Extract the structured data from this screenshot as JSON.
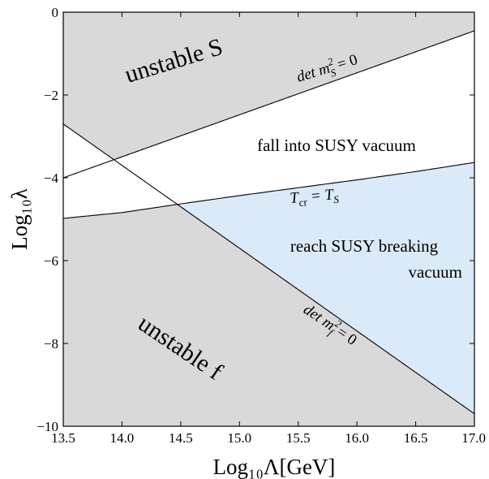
{
  "chart_data": {
    "type": "area",
    "title": "",
    "xlabel": "Log₁₀Λ[GeV]",
    "ylabel": "Log₁₀λ",
    "xlim": [
      13.5,
      17.0
    ],
    "ylim": [
      -10,
      0
    ],
    "xticks": [
      13.5,
      14.0,
      14.5,
      15.0,
      15.5,
      16.0,
      16.5,
      17.0
    ],
    "xtick_labels": [
      "13.5",
      "14.0",
      "14.5",
      "15.0",
      "15.5",
      "16.0",
      "16.5",
      "17.0"
    ],
    "yticks": [
      0,
      -2,
      -4,
      -6,
      -8,
      -10
    ],
    "ytick_labels": [
      "0",
      "−2",
      "−4",
      "−6",
      "−8",
      "−10"
    ],
    "grid": false,
    "curves": [
      {
        "label": "det m²_S = 0",
        "x": [
          13.5,
          17.0
        ],
        "y": [
          -4.0,
          -0.45
        ]
      },
      {
        "label": "det m²_f = 0",
        "x": [
          13.5,
          17.0
        ],
        "y": [
          -2.7,
          -9.7
        ]
      },
      {
        "label": "T_cr = T_S",
        "x": [
          13.5,
          14.0,
          14.5,
          15.0,
          15.5,
          16.0,
          16.5,
          17.0
        ],
        "y": [
          -4.98,
          -4.84,
          -4.63,
          -4.43,
          -4.24,
          -4.05,
          -3.85,
          -3.63
        ]
      }
    ],
    "regions": [
      {
        "label": "unstable S",
        "color": "#d9d9d9"
      },
      {
        "label": "unstable f",
        "color": "#d9d9d9"
      },
      {
        "label": "fall into SUSY vacuum",
        "color": "#ffffff"
      },
      {
        "label": "reach SUSY breaking vacuum",
        "color": "#dbeaf8"
      }
    ]
  },
  "labels": {
    "unstable_s": "unstable S",
    "unstable_f": "unstable f",
    "fall_susy": "fall into SUSY vacuum",
    "reach_line1": "reach SUSY breaking",
    "reach_line2": "vacuum",
    "det_s_base": "det m",
    "det_s_sup": "2",
    "det_s_sub": "S",
    "det_s_tail": " = 0",
    "det_f_base": "det m",
    "det_f_sup": "2",
    "det_f_sub": "f",
    "det_f_tail": " = 0",
    "tcr_base": "T",
    "tcr_sub": "cr",
    "tcr_mid": " = T",
    "ts_sub": "S"
  }
}
